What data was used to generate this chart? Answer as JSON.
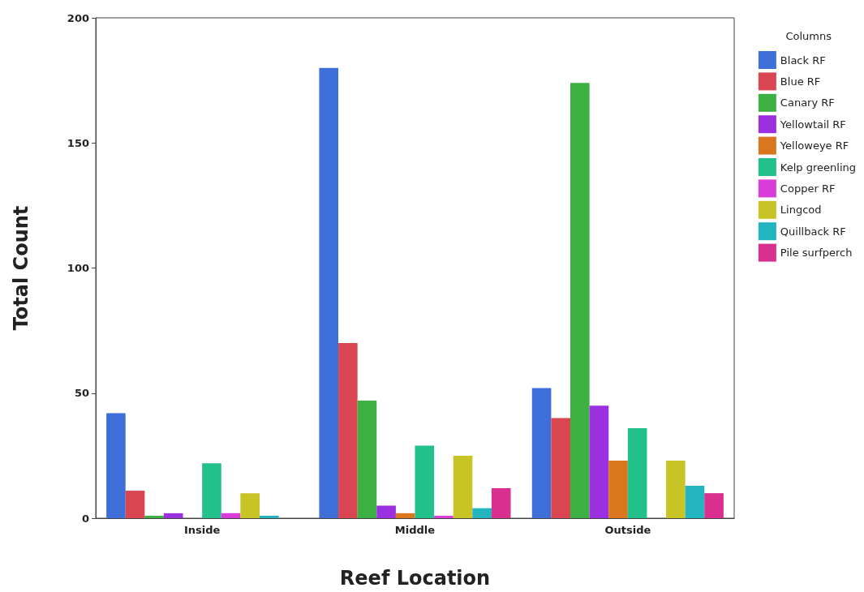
{
  "chart_data": {
    "type": "bar",
    "xlabel": "Reef Location",
    "ylabel": "Total Count",
    "legend_title": "Columns",
    "categories": [
      "Inside",
      "Middle",
      "Outside"
    ],
    "series": [
      {
        "name": "Black RF",
        "color": "#3e6fd9",
        "values": [
          42,
          180,
          52
        ]
      },
      {
        "name": "Blue RF",
        "color": "#d94550",
        "values": [
          11,
          70,
          40
        ]
      },
      {
        "name": "Canary RF",
        "color": "#3cb043",
        "values": [
          1,
          47,
          174
        ]
      },
      {
        "name": "Yellowtail RF",
        "color": "#9b30e0",
        "values": [
          2,
          5,
          45
        ]
      },
      {
        "name": "Yelloweye RF",
        "color": "#d9761e",
        "values": [
          0,
          2,
          23
        ]
      },
      {
        "name": "Kelp greenling",
        "color": "#22c08a",
        "values": [
          22,
          29,
          36
        ]
      },
      {
        "name": "Copper RF",
        "color": "#d93cd9",
        "values": [
          2,
          1,
          0
        ]
      },
      {
        "name": "Lingcod",
        "color": "#c9c426",
        "values": [
          10,
          25,
          23
        ]
      },
      {
        "name": "Quillback RF",
        "color": "#22b5c0",
        "values": [
          1,
          4,
          13
        ]
      },
      {
        "name": "Pile surfperch",
        "color": "#d92f8f",
        "values": [
          0,
          12,
          10
        ]
      }
    ],
    "ylim": [
      0,
      200
    ],
    "yticks": [
      0,
      50,
      100,
      150,
      200
    ],
    "grid": false,
    "legend": "right"
  }
}
